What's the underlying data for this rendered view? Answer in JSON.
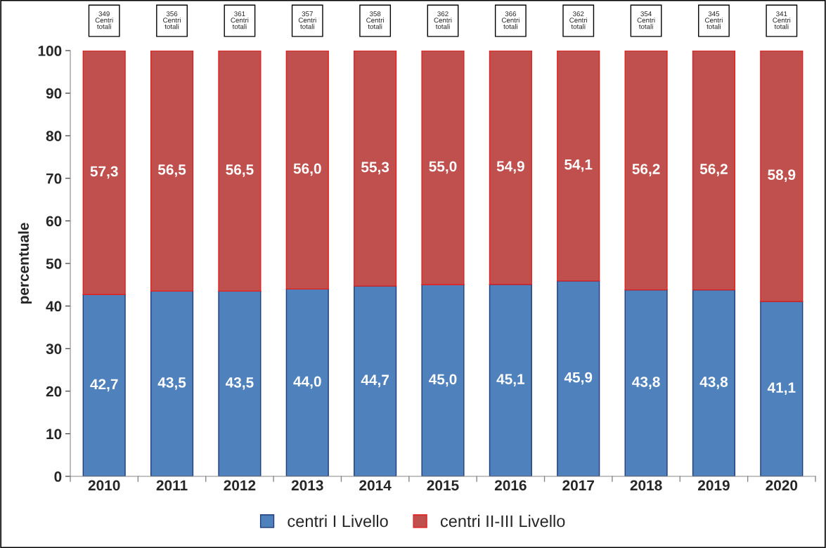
{
  "chart_data": {
    "type": "bar",
    "stacked": true,
    "ylabel": "percentuale",
    "categories": [
      "2010",
      "2011",
      "2012",
      "2013",
      "2014",
      "2015",
      "2016",
      "2017",
      "2018",
      "2019",
      "2020"
    ],
    "series": [
      {
        "name": "centri I Livello",
        "color": "#4f81bd",
        "values": [
          42.7,
          43.5,
          43.5,
          44.0,
          44.7,
          45.0,
          45.1,
          45.9,
          43.8,
          43.8,
          41.1
        ],
        "value_labels": [
          "42,7",
          "43,5",
          "43,5",
          "44,0",
          "44,7",
          "45,0",
          "45,1",
          "45,9",
          "43,8",
          "43,8",
          "41,1"
        ]
      },
      {
        "name": "centri II-III Livello",
        "color": "#c0504d",
        "values": [
          57.3,
          56.5,
          56.5,
          56.0,
          55.3,
          55.0,
          54.9,
          54.1,
          56.2,
          56.2,
          58.9
        ],
        "value_labels": [
          "57,3",
          "56,5",
          "56,5",
          "56,0",
          "55,3",
          "55,0",
          "54,9",
          "54,1",
          "56,2",
          "56,2",
          "58,9"
        ]
      }
    ],
    "annotations": [
      "349\nCentri\ntotali",
      "356\nCentri\ntotali",
      "361\nCentri\ntotali",
      "357\nCentri\ntotali",
      "358\nCentri\ntotali",
      "362\nCentri\ntotali",
      "366\nCentri\ntotali",
      "362\nCentri\ntotali",
      "354\nCentri\ntotali",
      "345\nCentri\ntotali",
      "341\nCentri\ntotali"
    ],
    "ylim": [
      0,
      100
    ],
    "yticks": [
      0,
      10,
      20,
      30,
      40,
      50,
      60,
      70,
      80,
      90,
      100
    ],
    "grid": false,
    "legend": "bottom"
  }
}
